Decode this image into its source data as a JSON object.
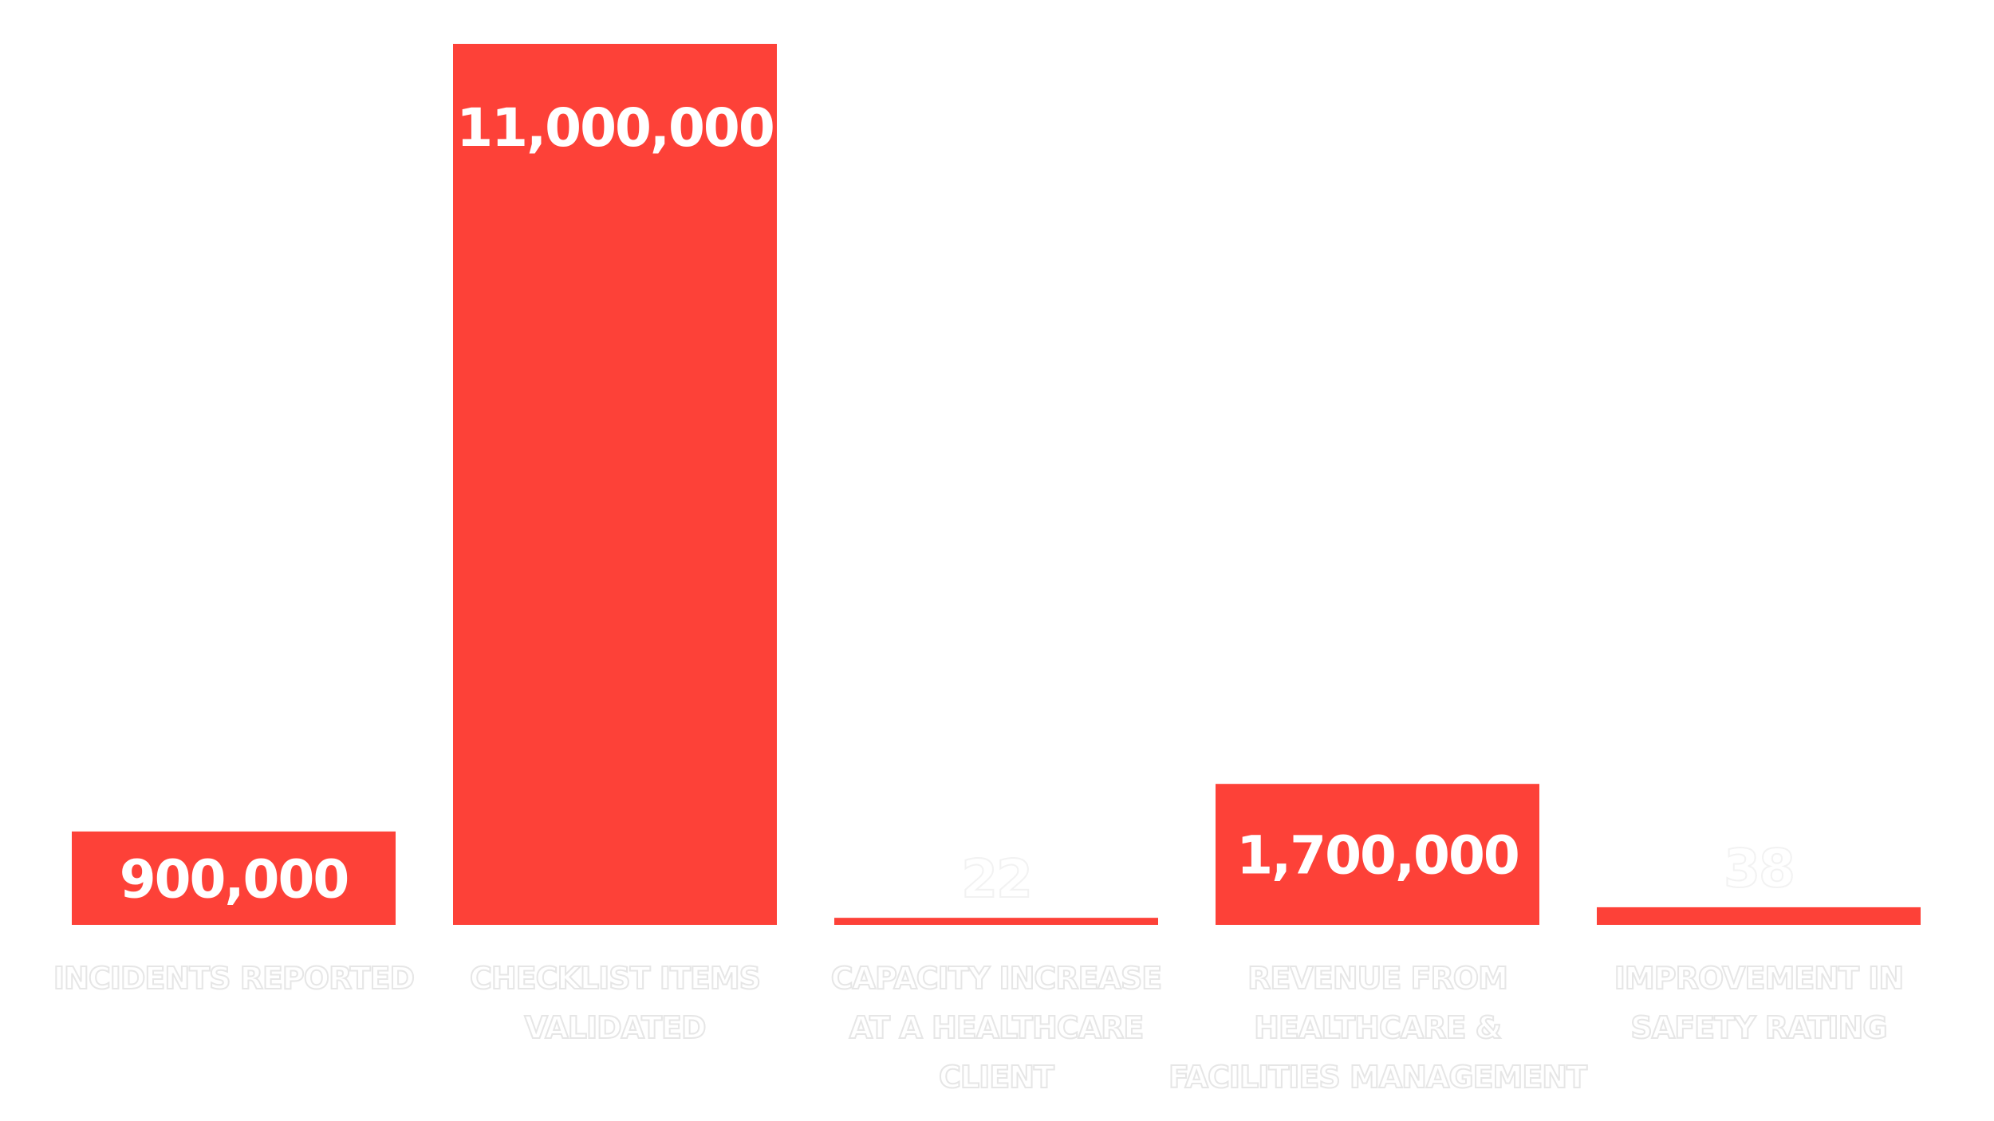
{
  "chart_data": {
    "type": "bar",
    "categories": [
      [
        "INCIDENTS REPORTED"
      ],
      [
        "CHECKLIST ITEMS",
        "VALIDATED"
      ],
      [
        "CAPACITY INCREASE",
        "AT A HEALTHCARE",
        "CLIENT"
      ],
      [
        "REVENUE FROM",
        "HEALTHCARE &",
        "FACILITIES MANAGEMENT"
      ],
      [
        "IMPROVEMENT IN",
        "SAFETY RATING"
      ]
    ],
    "values": [
      900000,
      11000000,
      22,
      1700000,
      38
    ],
    "value_labels": [
      "900,000",
      "11,000,000",
      "22",
      "1,700,000",
      "38"
    ],
    "bar_heights_relative": [
      0.106,
      1.0,
      0.008,
      0.16,
      0.02
    ],
    "title": "",
    "xlabel": "",
    "ylabel": "",
    "grid": false,
    "legend": "none"
  },
  "colors": {
    "bar": "#fd4138",
    "value_text_on_bar": "#ffffff",
    "value_text_outline": "#f2f2f2",
    "category_text": "#ffffff",
    "category_outline": "#e6e6e6"
  }
}
